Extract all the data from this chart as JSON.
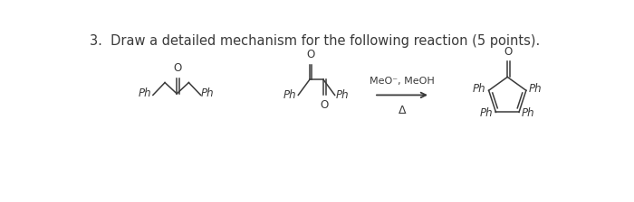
{
  "title_text": "3.  Draw a detailed mechanism for the following reaction (5 points).",
  "title_fontsize": 10.5,
  "bg_color": "#ffffff",
  "line_color": "#3a3a3a",
  "text_color": "#3a3a3a",
  "arrow_color": "#3a3a3a",
  "reagent_line": "MeO⁻, MeOH",
  "reagent_delta": "Δ"
}
